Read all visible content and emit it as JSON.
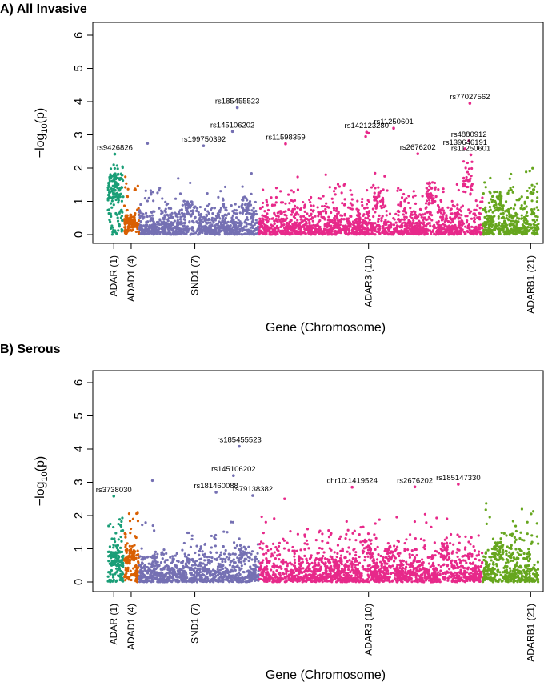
{
  "chart_data": [
    {
      "type": "scatter",
      "title": "A) All Invasive",
      "xlabel": "Gene (Chromosome)",
      "ylabel_main": "−log",
      "ylabel_sub": "10",
      "ylabel_tail": "(p)",
      "ylim": [
        0,
        6
      ],
      "yticks": [
        "0",
        "1",
        "2",
        "3",
        "4",
        "5",
        "6"
      ],
      "seed": 1234,
      "genes": [
        {
          "name": "ADAR (1)",
          "color": "#1a9e77",
          "x_start": 0.0,
          "x_end": 1.6,
          "tick": 0.6,
          "n": 160,
          "max_y": 2.1,
          "bias": 1.2,
          "hot": [
            {
              "x": 1.0,
              "y": 1.85
            },
            {
              "x": 0.5,
              "y": 1.8
            }
          ]
        },
        {
          "name": "ADAD1 (4)",
          "color": "#d95f02",
          "x_start": 1.7,
          "x_end": 3.2,
          "tick": 2.4,
          "n": 140,
          "max_y": 2.0,
          "bias": 0.55,
          "hot": [
            {
              "x": 2.3,
              "y": 0.6
            },
            {
              "x": 2.6,
              "y": 0.4
            }
          ]
        },
        {
          "name": "SND1 (7)",
          "color": "#7570b3",
          "x_start": 3.25,
          "x_end": 15.6,
          "tick": 9.0,
          "n": 900,
          "max_y": 2.3,
          "bias": 0.35,
          "hot": [
            {
              "x": 14.3,
              "y": 1.15
            },
            {
              "x": 8.5,
              "y": 1.0
            }
          ]
        },
        {
          "name": "ADAR3 (10)",
          "color": "#e7298a",
          "x_start": 15.65,
          "x_end": 38.8,
          "tick": 27.0,
          "n": 1600,
          "max_y": 2.6,
          "bias": 0.35,
          "hot": [
            {
              "x": 28.0,
              "y": 1.5
            },
            {
              "x": 33.5,
              "y": 1.6
            },
            {
              "x": 37.3,
              "y": 2.2
            }
          ]
        },
        {
          "name": "ADARB1 (21)",
          "color": "#66a61e",
          "x_start": 38.85,
          "x_end": 44.6,
          "tick": 43.8,
          "n": 420,
          "max_y": 2.0,
          "bias": 0.45,
          "hot": [
            {
              "x": 40.5,
              "y": 1.3
            }
          ]
        }
      ],
      "labeled_points": [
        {
          "label": "rs9426826",
          "x": 0.7,
          "y": 2.42,
          "gene": "ADAR (1)"
        },
        {
          "label": "rs199750392",
          "x": 9.9,
          "y": 2.67,
          "gene": "SND1 (7)"
        },
        {
          "label": "rs145106202",
          "x": 12.9,
          "y": 3.1,
          "gene": "SND1 (7)"
        },
        {
          "label": "rs185455523",
          "x": 13.4,
          "y": 3.82,
          "gene": "SND1 (7)"
        },
        {
          "label": "rs11598359",
          "x": 18.4,
          "y": 2.73,
          "gene": "ADAR3 (10)"
        },
        {
          "label": "rs142123280",
          "x": 26.8,
          "y": 3.08,
          "gene": "ADAR3 (10)"
        },
        {
          "label": "rs11250601",
          "x": 29.6,
          "y": 3.2,
          "gene": "ADAR3 (10)"
        },
        {
          "label": "rs2676202",
          "x": 32.1,
          "y": 2.43,
          "gene": "ADAR3 (10)"
        },
        {
          "label": "rs77027562",
          "x": 37.5,
          "y": 3.95,
          "gene": "ADAR3 (10)"
        },
        {
          "label": "rs4880912",
          "x": 37.4,
          "y": 2.82,
          "gene": "ADAR3 (10)"
        },
        {
          "label": "rs139646191",
          "x": 37.0,
          "y": 2.58,
          "gene": "ADAR3 (10)"
        },
        {
          "label": "rs11250601",
          "x": 37.6,
          "y": 2.4,
          "gene": "ADAR3 (10)"
        }
      ],
      "extra_points": [
        {
          "x": 4.1,
          "y": 2.74,
          "gene": "SND1 (7)"
        },
        {
          "x": 26.7,
          "y": 2.95,
          "gene": "ADAR3 (10)"
        },
        {
          "x": 27.0,
          "y": 3.05,
          "gene": "ADAR3 (10)"
        }
      ]
    },
    {
      "type": "scatter",
      "title": "B) Serous",
      "xlabel": "Gene (Chromosome)",
      "ylabel_main": "−log",
      "ylabel_sub": "10",
      "ylabel_tail": "(p)",
      "ylim": [
        0,
        6
      ],
      "yticks": [
        "0",
        "1",
        "2",
        "3",
        "4",
        "5",
        "6"
      ],
      "seed": 98765,
      "genes": [
        {
          "name": "ADAR (1)",
          "color": "#1a9e77",
          "x_start": 0.0,
          "x_end": 1.6,
          "tick": 0.6,
          "n": 160,
          "max_y": 2.1,
          "bias": 0.7,
          "hot": [
            {
              "x": 0.8,
              "y": 0.9
            }
          ]
        },
        {
          "name": "ADAD1 (4)",
          "color": "#d95f02",
          "x_start": 1.7,
          "x_end": 3.2,
          "tick": 2.4,
          "n": 140,
          "max_y": 2.2,
          "bias": 0.6,
          "hot": [
            {
              "x": 2.3,
              "y": 1.0
            }
          ]
        },
        {
          "name": "SND1 (7)",
          "color": "#7570b3",
          "x_start": 3.25,
          "x_end": 15.6,
          "tick": 9.0,
          "n": 900,
          "max_y": 2.3,
          "bias": 0.35,
          "hot": [
            {
              "x": 14.0,
              "y": 1.1
            }
          ]
        },
        {
          "name": "ADAR3 (10)",
          "color": "#e7298a",
          "x_start": 15.65,
          "x_end": 38.8,
          "tick": 27.0,
          "n": 1600,
          "max_y": 2.4,
          "bias": 0.4,
          "hot": [
            {
              "x": 26.8,
              "y": 1.3
            },
            {
              "x": 29.4,
              "y": 1.1
            },
            {
              "x": 35.0,
              "y": 1.2
            }
          ]
        },
        {
          "name": "ADARB1 (21)",
          "color": "#66a61e",
          "x_start": 38.85,
          "x_end": 44.6,
          "tick": 43.8,
          "n": 420,
          "max_y": 2.4,
          "bias": 0.45,
          "hot": [
            {
              "x": 40.5,
              "y": 1.2
            }
          ]
        }
      ],
      "labeled_points": [
        {
          "label": "rs3738030",
          "x": 0.6,
          "y": 2.58,
          "gene": "ADAR (1)"
        },
        {
          "label": "rs181460088",
          "x": 11.2,
          "y": 2.7,
          "gene": "SND1 (7)"
        },
        {
          "label": "rs145106202",
          "x": 13.0,
          "y": 3.2,
          "gene": "SND1 (7)"
        },
        {
          "label": "rs185455523",
          "x": 13.6,
          "y": 4.08,
          "gene": "SND1 (7)"
        },
        {
          "label": "rs79138382",
          "x": 15.0,
          "y": 2.6,
          "gene": "SND1 (7)"
        },
        {
          "label": "chr10:1419524",
          "x": 25.3,
          "y": 2.85,
          "gene": "ADAR3 (10)"
        },
        {
          "label": "rs2676202",
          "x": 31.8,
          "y": 2.86,
          "gene": "ADAR3 (10)"
        },
        {
          "label": "rs185147330",
          "x": 36.3,
          "y": 2.94,
          "gene": "ADAR3 (10)"
        }
      ],
      "extra_points": [
        {
          "x": 4.6,
          "y": 3.05,
          "gene": "SND1 (7)"
        },
        {
          "x": 18.3,
          "y": 2.5,
          "gene": "ADAR3 (10)"
        }
      ]
    }
  ]
}
